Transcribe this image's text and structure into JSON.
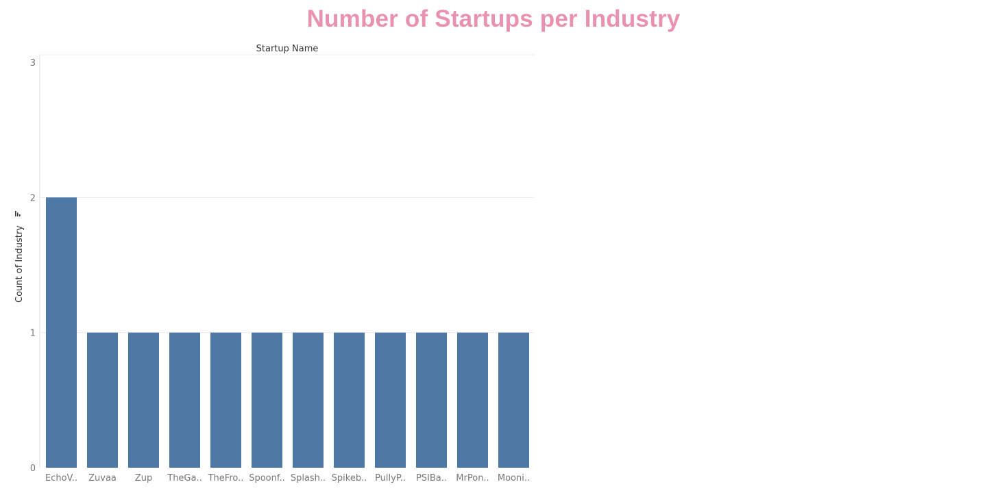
{
  "chart_data": {
    "type": "bar",
    "title": "Number of Startups per Industry",
    "column_header": "Startup Name",
    "ylabel": "Count of Industry",
    "xlabel": "",
    "sort_icon": "sort-descending-icon",
    "categories": [
      "EchoV..",
      "Zuvaa",
      "Zup",
      "TheGa..",
      "TheFro..",
      "Spoonf..",
      "Splash..",
      "Spikeb..",
      "PullyP..",
      "PSIBa..",
      "MrPon..",
      "Mooni.."
    ],
    "values": [
      2,
      1,
      1,
      1,
      1,
      1,
      1,
      1,
      1,
      1,
      1,
      1
    ],
    "ylim": [
      0,
      3
    ],
    "yticks": [
      "0",
      "1",
      "2",
      "3"
    ],
    "grid": true,
    "bar_color": "#4e79a7",
    "title_color": "#e891b0"
  }
}
